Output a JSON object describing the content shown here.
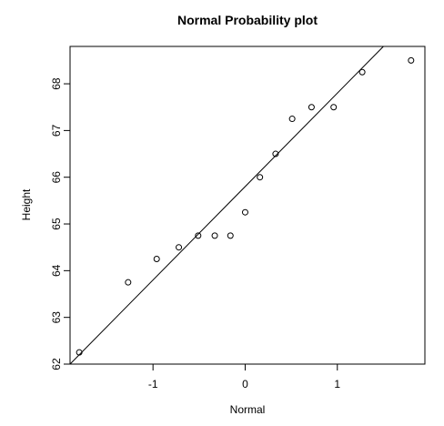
{
  "chart_data": {
    "type": "scatter",
    "title": "Normal Probability plot",
    "xlabel": "Normal",
    "ylabel": "Height",
    "xlim": [
      -1.9,
      1.95
    ],
    "ylim": [
      62,
      68.8
    ],
    "x_ticks": [
      -1,
      0,
      1
    ],
    "x_tick_labels": [
      "-1",
      "0",
      "1"
    ],
    "y_ticks": [
      62,
      63,
      64,
      65,
      66,
      67,
      68
    ],
    "y_tick_labels": [
      "62",
      "63",
      "64",
      "65",
      "66",
      "67",
      "68"
    ],
    "grid": false,
    "legend": "none",
    "point_color": "#000000",
    "line_color": "#000000",
    "series": [
      {
        "values": [
          {
            "x": -1.8,
            "y": 62.25
          },
          {
            "x": -1.27,
            "y": 63.75
          },
          {
            "x": -0.96,
            "y": 64.25
          },
          {
            "x": -0.72,
            "y": 64.5
          },
          {
            "x": -0.51,
            "y": 64.75
          },
          {
            "x": -0.33,
            "y": 64.75
          },
          {
            "x": -0.16,
            "y": 64.75
          },
          {
            "x": 0.0,
            "y": 65.25
          },
          {
            "x": 0.16,
            "y": 66.0
          },
          {
            "x": 0.33,
            "y": 66.5
          },
          {
            "x": 0.51,
            "y": 67.25
          },
          {
            "x": 0.72,
            "y": 67.5
          },
          {
            "x": 0.96,
            "y": 67.5
          },
          {
            "x": 1.27,
            "y": 68.25
          },
          {
            "x": 1.8,
            "y": 68.5
          }
        ]
      }
    ],
    "reference_line": {
      "intercept": 65.8,
      "slope": 2.0
    }
  }
}
